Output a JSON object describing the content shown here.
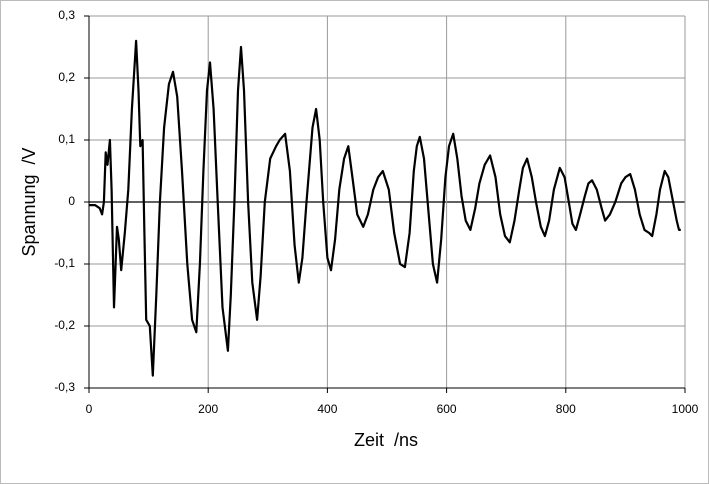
{
  "chart_data": {
    "type": "line",
    "xlabel": "Zeit  /ns",
    "ylabel": "Spannung  /V",
    "xlim": [
      0,
      1000
    ],
    "xticks": [
      0,
      200,
      400,
      600,
      800,
      1000
    ],
    "ylim": [
      -0.3,
      0.3
    ],
    "yticks": [
      {
        "value": -0.3,
        "label": "-0,3"
      },
      {
        "value": -0.2,
        "label": "-0,2"
      },
      {
        "value": -0.1,
        "label": "-0,1"
      },
      0,
      {
        "value": 0.1,
        "label": "0,1"
      },
      {
        "value": 0.2,
        "label": "0,2"
      },
      {
        "value": 0.3,
        "label": "0,3"
      }
    ],
    "grid": true,
    "series": [
      {
        "color": "#000000",
        "x": [
          0,
          10,
          18,
          22,
          25,
          28,
          31,
          35,
          38,
          42,
          47,
          50,
          54,
          60,
          66,
          72,
          79,
          83,
          86,
          90,
          93,
          96,
          102,
          107,
          113,
          119,
          126,
          134,
          141,
          148,
          156,
          165,
          173,
          180,
          186,
          192,
          198,
          203,
          209,
          216,
          224,
          233,
          238,
          244,
          250,
          255,
          260,
          267,
          274,
          282,
          288,
          295,
          304,
          314,
          320,
          329,
          337,
          345,
          352,
          358,
          365,
          375,
          381,
          387,
          393,
          400,
          406,
          413,
          420,
          428,
          435,
          442,
          450,
          460,
          468,
          477,
          485,
          493,
          503,
          512,
          522,
          530,
          538,
          545,
          550,
          555,
          562,
          570,
          577,
          584,
          591,
          598,
          604,
          611,
          618,
          625,
          632,
          640,
          648,
          655,
          664,
          673,
          682,
          690,
          698,
          706,
          714,
          722,
          728,
          735,
          743,
          750,
          758,
          765,
          772,
          780,
          790,
          798,
          805,
          811,
          817,
          824,
          832,
          838,
          844,
          852,
          860,
          866,
          874,
          883,
          893,
          900,
          908,
          916,
          924,
          932,
          940,
          945,
          952,
          958,
          966,
          972,
          980,
          986,
          990,
          993
        ],
        "values": [
          -0.005,
          -0.005,
          -0.01,
          -0.02,
          0.0,
          0.08,
          0.06,
          0.1,
          0.02,
          -0.17,
          -0.04,
          -0.06,
          -0.11,
          -0.05,
          0.02,
          0.15,
          0.26,
          0.18,
          0.09,
          0.1,
          -0.05,
          -0.19,
          -0.2,
          -0.28,
          -0.15,
          0.0,
          0.12,
          0.19,
          0.21,
          0.17,
          0.05,
          -0.1,
          -0.19,
          -0.21,
          -0.1,
          0.05,
          0.18,
          0.225,
          0.15,
          0.0,
          -0.17,
          -0.24,
          -0.15,
          0.0,
          0.18,
          0.25,
          0.18,
          0.0,
          -0.13,
          -0.19,
          -0.12,
          0.0,
          0.07,
          0.09,
          0.1,
          0.11,
          0.05,
          -0.07,
          -0.13,
          -0.09,
          0.0,
          0.12,
          0.15,
          0.1,
          0.0,
          -0.09,
          -0.11,
          -0.06,
          0.02,
          0.07,
          0.09,
          0.04,
          -0.02,
          -0.04,
          -0.02,
          0.02,
          0.04,
          0.05,
          0.02,
          -0.05,
          -0.1,
          -0.105,
          -0.05,
          0.05,
          0.09,
          0.105,
          0.07,
          -0.02,
          -0.1,
          -0.13,
          -0.06,
          0.04,
          0.09,
          0.11,
          0.07,
          0.01,
          -0.03,
          -0.045,
          -0.01,
          0.03,
          0.06,
          0.075,
          0.04,
          -0.02,
          -0.055,
          -0.065,
          -0.03,
          0.02,
          0.055,
          0.07,
          0.04,
          0.0,
          -0.04,
          -0.055,
          -0.03,
          0.02,
          0.055,
          0.04,
          0.0,
          -0.035,
          -0.045,
          -0.02,
          0.01,
          0.03,
          0.035,
          0.02,
          -0.01,
          -0.03,
          -0.02,
          0.0,
          0.03,
          0.04,
          0.045,
          0.02,
          -0.02,
          -0.045,
          -0.05,
          -0.055,
          -0.02,
          0.02,
          0.05,
          0.04,
          0.0,
          -0.03,
          -0.045,
          -0.045
        ]
      }
    ]
  }
}
